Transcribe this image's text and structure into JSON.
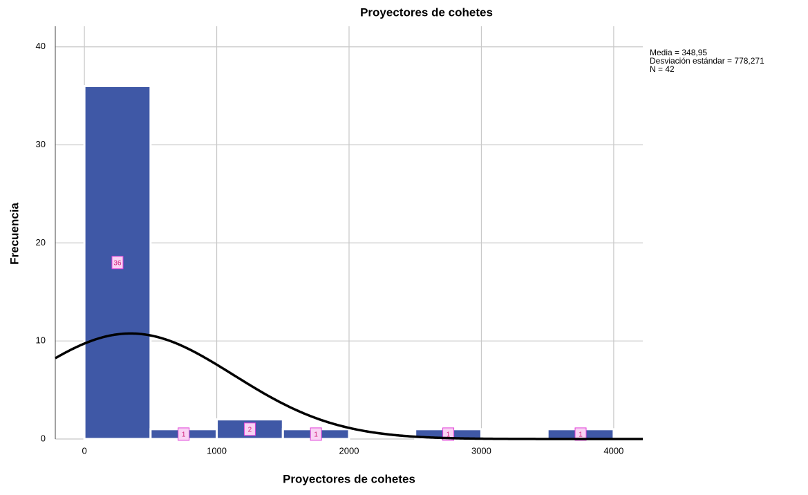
{
  "chart_data": {
    "type": "histogram",
    "title": "Proyectores de cohetes",
    "x_label": "Proyectores de cohetes",
    "y_label": "Frecuencia",
    "bins": [
      0,
      500,
      1000,
      1500,
      2000,
      2500,
      3000,
      3500,
      4000
    ],
    "values": [
      36,
      1,
      2,
      1,
      0,
      1,
      0,
      1
    ],
    "color": "#3f58a6",
    "xlim": [
      -220,
      4220
    ],
    "ylim": [
      0,
      42.1
    ],
    "xticks": [
      0,
      1000,
      2000,
      3000,
      4000
    ],
    "yticks": [
      0,
      10,
      20,
      30,
      40
    ],
    "grid": true,
    "normal_curve": {
      "mean": 348.95,
      "sd": 778.271,
      "n": 42
    },
    "annotations": [
      "Media = 348,95",
      "Desviación estándar = 778,271",
      "N = 42"
    ]
  }
}
